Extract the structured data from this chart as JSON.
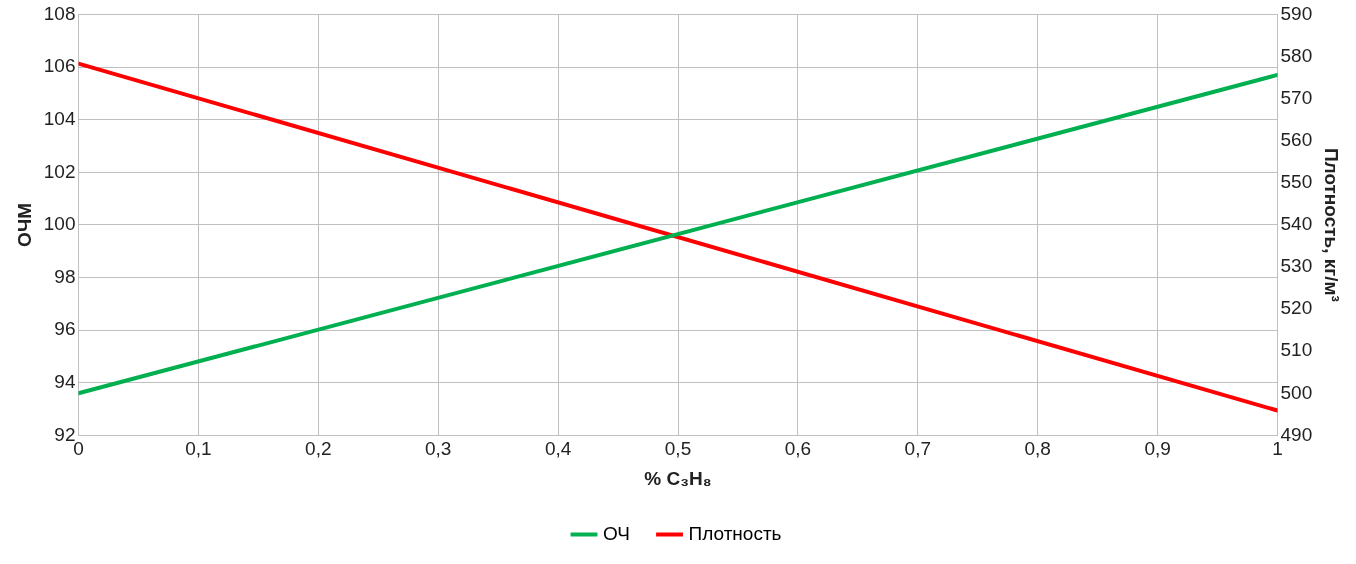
{
  "chart_data": {
    "type": "line",
    "xlabel": "% C₃H₈",
    "ylabel": "ОЧМ",
    "y2label": "Плотность, кг/м³",
    "x": [
      0,
      1
    ],
    "series": [
      {
        "name": "ОЧ",
        "color": "#00b050",
        "values": [
          93.6,
          105.7
        ]
      },
      {
        "name": "Плотность",
        "color": "#ff0000",
        "values": [
          578.3,
          495.9
        ],
        "axis": "y2"
      }
    ],
    "xlim": [
      0,
      1
    ],
    "xticks": [
      0,
      {
        "value": 0.1,
        "label": "0,1"
      },
      {
        "value": 0.2,
        "label": "0,2"
      },
      {
        "value": 0.3,
        "label": "0,3"
      },
      {
        "value": 0.4,
        "label": "0,4"
      },
      {
        "value": 0.5,
        "label": "0,5"
      },
      {
        "value": 0.6,
        "label": "0,6"
      },
      {
        "value": 0.7,
        "label": "0,7"
      },
      {
        "value": 0.8,
        "label": "0,8"
      },
      {
        "value": 0.9,
        "label": "0,9"
      },
      1
    ],
    "ylim": [
      92,
      108
    ],
    "yticks": [
      92,
      94,
      96,
      98,
      100,
      102,
      104,
      106,
      108
    ],
    "y2lim": [
      490,
      590
    ],
    "y2ticks": [
      490,
      500,
      510,
      520,
      530,
      540,
      550,
      560,
      570,
      580,
      590
    ],
    "grid": true,
    "legend": "bottom",
    "marker": "none",
    "line_style": "solid"
  }
}
